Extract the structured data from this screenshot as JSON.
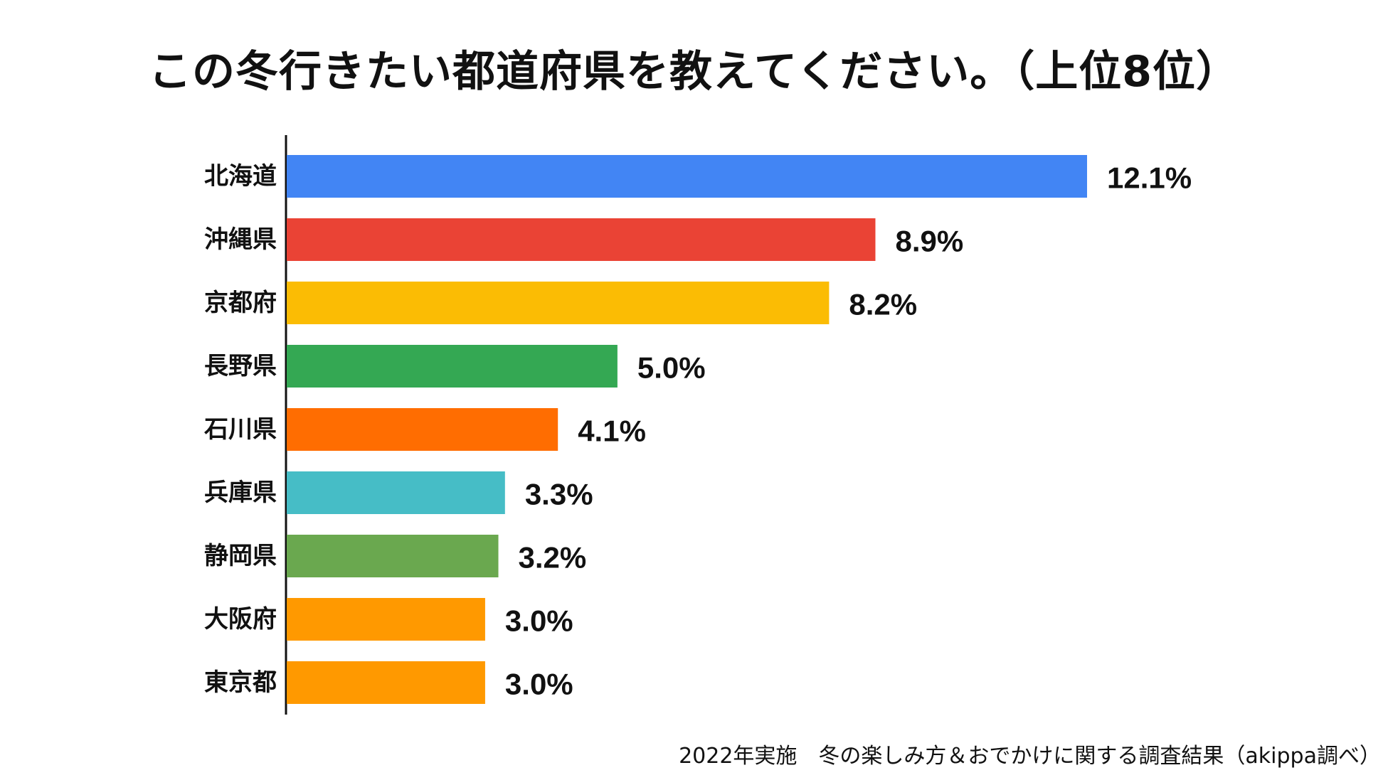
{
  "title": "この冬行きたい都道府県を教えてください。（上位8位）",
  "source_note": "2022年実施　冬の楽しみ方＆おでかけに関する調査結果（akippa調べ）",
  "chart_data": {
    "type": "bar",
    "orientation": "horizontal",
    "title": "この冬行きたい都道府県を教えてください。（上位8位）",
    "categories": [
      "北海道",
      "沖縄県",
      "京都府",
      "長野県",
      "石川県",
      "兵庫県",
      "静岡県",
      "大阪府",
      "東京都"
    ],
    "values": [
      12.1,
      8.9,
      8.2,
      5.0,
      4.1,
      3.3,
      3.2,
      3.0,
      3.0
    ],
    "value_labels": [
      "12.1%",
      "8.9%",
      "8.2%",
      "5.0%",
      "4.1%",
      "3.3%",
      "3.2%",
      "3.0%",
      "3.0%"
    ],
    "colors": [
      "#4285f4",
      "#ea4335",
      "#fbbc04",
      "#34a853",
      "#ff6d01",
      "#46bdc6",
      "#6aa84f",
      "#ff9900",
      "#ff9900"
    ],
    "xlim": [
      0,
      12.1
    ],
    "grid": false,
    "legend": "none"
  }
}
